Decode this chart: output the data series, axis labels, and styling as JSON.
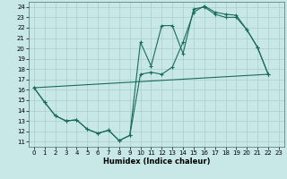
{
  "xlabel": "Humidex (Indice chaleur)",
  "bg_color": "#c8e8e8",
  "grid_color": "#aacccc",
  "line_color": "#1a6b5a",
  "xlim": [
    -0.5,
    23.5
  ],
  "ylim": [
    10.5,
    24.5
  ],
  "xticks": [
    0,
    1,
    2,
    3,
    4,
    5,
    6,
    7,
    8,
    9,
    10,
    11,
    12,
    13,
    14,
    15,
    16,
    17,
    18,
    19,
    20,
    21,
    22,
    23
  ],
  "yticks": [
    11,
    12,
    13,
    14,
    15,
    16,
    17,
    18,
    19,
    20,
    21,
    22,
    23,
    24
  ],
  "line1_x": [
    0,
    1,
    2,
    3,
    4,
    5,
    6,
    7,
    8,
    9,
    10,
    11,
    12,
    13,
    14,
    15,
    16,
    17,
    18,
    19,
    20,
    21,
    22
  ],
  "line1_y": [
    16.2,
    14.8,
    13.5,
    13.0,
    13.1,
    12.2,
    11.8,
    12.1,
    11.1,
    11.6,
    20.6,
    18.3,
    22.2,
    22.2,
    19.5,
    23.8,
    24.0,
    23.3,
    23.0,
    23.0,
    21.8,
    20.1,
    17.5
  ],
  "line2_x": [
    0,
    1,
    2,
    3,
    4,
    5,
    6,
    7,
    8,
    9,
    10,
    11,
    12,
    13,
    14,
    15,
    16,
    17,
    18,
    19,
    20,
    21,
    22
  ],
  "line2_y": [
    16.2,
    14.8,
    13.5,
    13.0,
    13.1,
    12.2,
    11.8,
    12.1,
    11.1,
    11.6,
    17.5,
    17.7,
    17.5,
    18.2,
    20.6,
    23.5,
    24.1,
    23.5,
    23.3,
    23.2,
    21.8,
    20.1,
    17.5
  ],
  "line3_x": [
    0,
    22
  ],
  "line3_y": [
    16.2,
    17.5
  ]
}
